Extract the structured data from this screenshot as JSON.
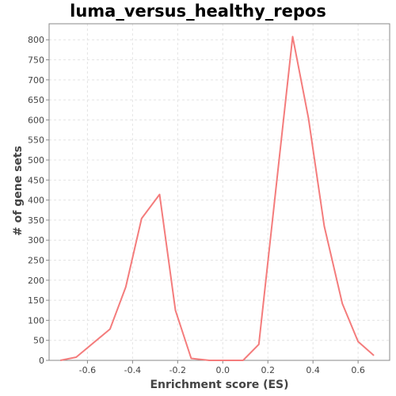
{
  "chart_data": {
    "type": "line",
    "title": "luma_versus_healthy_repos",
    "xlabel": "Enrichment score (ES)",
    "ylabel": "# of gene sets",
    "xlim": [
      -0.77,
      0.74
    ],
    "ylim": [
      0,
      840
    ],
    "xticks": [
      -0.6,
      -0.4,
      -0.2,
      0.0,
      0.2,
      0.4,
      0.6
    ],
    "xtick_labels": [
      "-0.6",
      "-0.4",
      "-0.2",
      "0.0",
      "0.2",
      "0.4",
      "0.6"
    ],
    "yticks": [
      0,
      50,
      100,
      150,
      200,
      250,
      300,
      350,
      400,
      450,
      500,
      550,
      600,
      650,
      700,
      750,
      800
    ],
    "ytick_labels": [
      "0",
      "50",
      "100",
      "150",
      "200",
      "250",
      "300",
      "350",
      "400",
      "450",
      "500",
      "550",
      "600",
      "650",
      "700",
      "750",
      "800"
    ],
    "grid": true,
    "series": [
      {
        "color": "#f47c7c",
        "x": [
          -0.72,
          -0.65,
          -0.5,
          -0.43,
          -0.36,
          -0.28,
          -0.21,
          -0.14,
          -0.06,
          0.01,
          0.09,
          0.16,
          0.31,
          0.38,
          0.45,
          0.53,
          0.6,
          0.67
        ],
        "y": [
          0,
          8,
          78,
          183,
          354,
          414,
          125,
          5,
          0,
          0,
          0,
          40,
          808,
          604,
          335,
          142,
          47,
          12
        ]
      }
    ]
  }
}
